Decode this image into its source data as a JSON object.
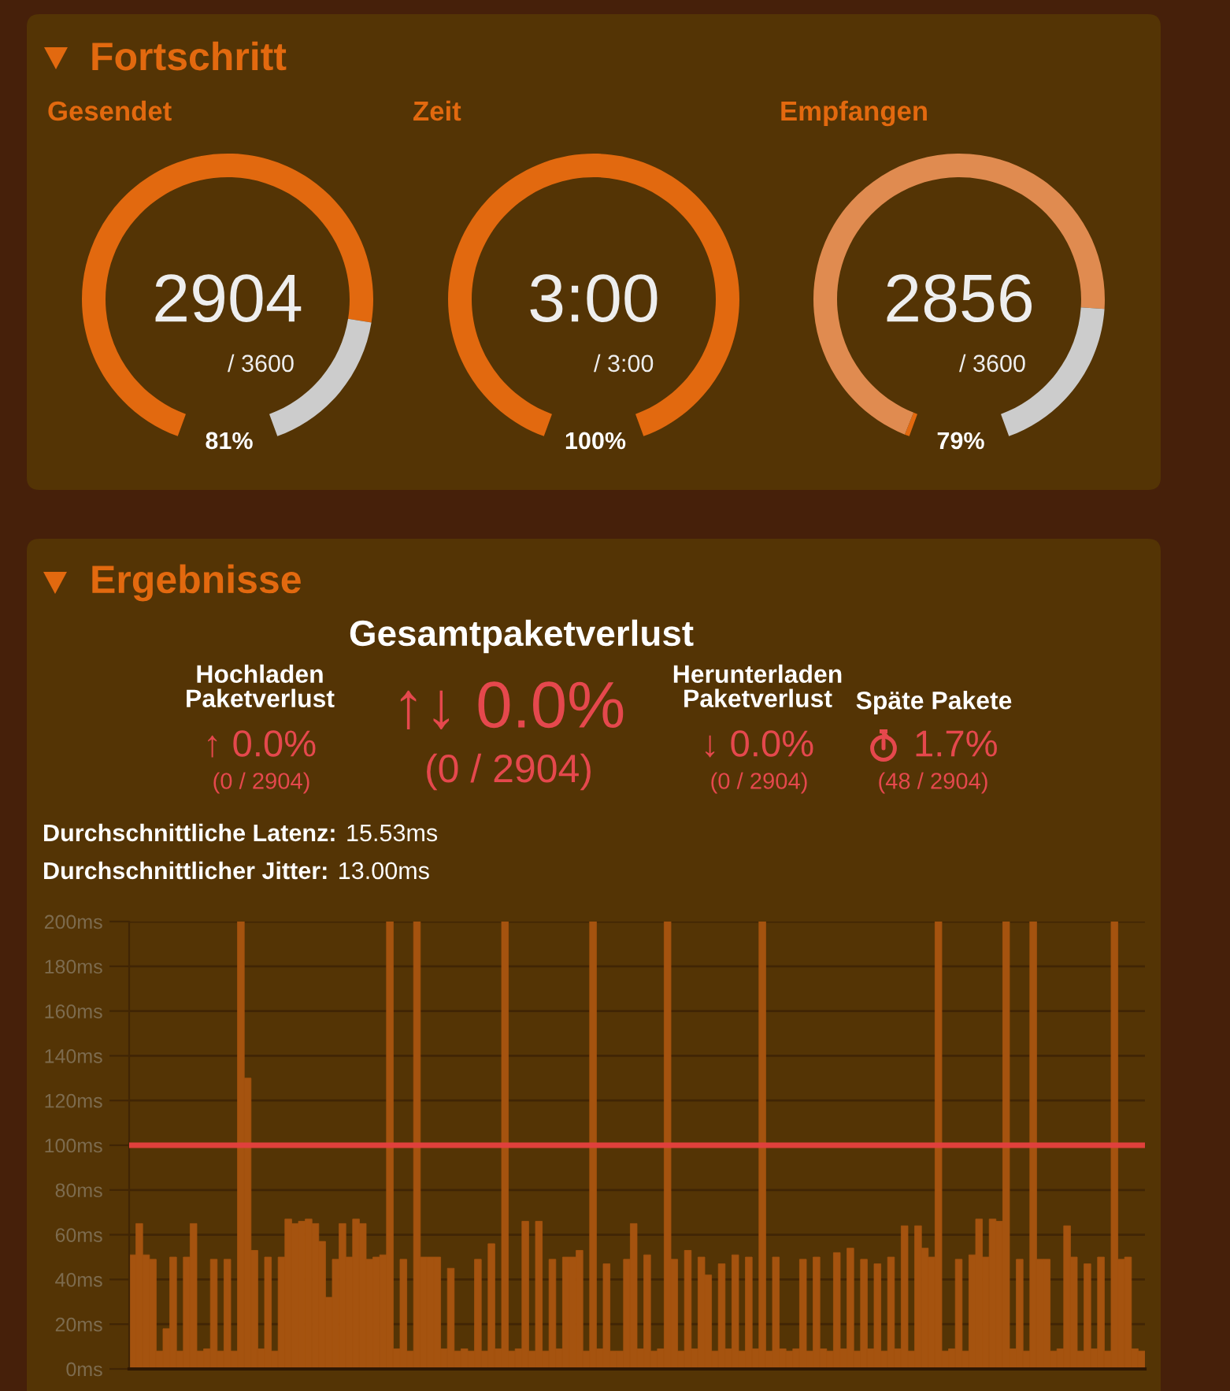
{
  "chart_data": [
    {
      "type": "other",
      "title": "Fortschritt"
    },
    {
      "type": "donut",
      "title": "Gesendet",
      "categories": [
        null,
        null
      ],
      "values": [
        81,
        19
      ],
      "colors": [
        "#e2690f",
        "#cccccc"
      ],
      "annotations": [
        "2904",
        "/ 3600",
        "81%"
      ]
    },
    {
      "type": "pie",
      "title": "Zeit",
      "categories": [
        null
      ],
      "values": [
        100
      ],
      "colors": [
        "#e2690f"
      ],
      "annotations": [
        "3:00",
        "/ 3:00",
        "100%"
      ]
    },
    {
      "type": "donut",
      "title": "Empfangen",
      "categories": [
        null,
        null,
        null
      ],
      "values": [
        0.6,
        78.7,
        20.7
      ],
      "colors": [
        "#e2690f",
        "#e08b50",
        "#cccccc"
      ],
      "annotations": [
        "2856",
        "/ 3600",
        "79%"
      ]
    },
    {
      "type": "other",
      "title": "Ergebnisse",
      "annotations": [
        "Gesamtpaketverlust",
        "↑↓ 0.0%",
        "(0 / 2904)",
        "Hochladen\nPaketverlust",
        "↑ 0.0%",
        "(0 / 2904)",
        "Herunterladen\nPaketverlust",
        "↓ 0.0%",
        "(0 / 2904)",
        "Späte Pakete",
        "1.7%",
        "(48 / 2904)",
        "Durchschnittliche Latenz:",
        "15.53ms",
        "Durchschnittlicher Jitter:",
        "13.00ms"
      ]
    },
    {
      "type": "bar",
      "categories": [
        null,
        null,
        null,
        null,
        null,
        null,
        null,
        null,
        null,
        null,
        null,
        null,
        null,
        null,
        null,
        null,
        null,
        null,
        null,
        null,
        null,
        null,
        null,
        null,
        null,
        null,
        null,
        null,
        null,
        null,
        null,
        null,
        null,
        null,
        null,
        null,
        null,
        null,
        null,
        null,
        null,
        null,
        null,
        null,
        null,
        null,
        null,
        null,
        null,
        null,
        null,
        null,
        null,
        null,
        null,
        null,
        null,
        null,
        null,
        null,
        null,
        null,
        null,
        null,
        null,
        null,
        null,
        null,
        null,
        null,
        null,
        null,
        null,
        null,
        null,
        null,
        null,
        null,
        null,
        null,
        null,
        null,
        null,
        null,
        null,
        null,
        null,
        null,
        null,
        null,
        null,
        null,
        null,
        null,
        null,
        null,
        null,
        null,
        null,
        null,
        null,
        null,
        null,
        null,
        null,
        null,
        null,
        null,
        null,
        null,
        null,
        null,
        null,
        null,
        null,
        null,
        null,
        null,
        null,
        null,
        null,
        null,
        null,
        null,
        null,
        null,
        null,
        null,
        null,
        null,
        null,
        null,
        null,
        null,
        null,
        null,
        null,
        null,
        null,
        null,
        null,
        null,
        null,
        null,
        null,
        null,
        null,
        null,
        null,
        null
      ],
      "values": [
        51,
        65,
        51,
        49,
        8,
        18,
        50,
        8,
        50,
        65,
        8,
        9,
        49,
        8,
        49,
        8,
        200,
        130,
        53,
        9,
        50,
        8,
        50,
        67,
        65,
        66,
        67,
        65,
        57,
        32,
        49,
        65,
        50,
        67,
        65,
        49,
        50,
        51,
        200,
        9,
        49,
        8,
        200,
        50,
        50,
        50,
        9,
        45,
        8,
        9,
        8,
        49,
        8,
        56,
        9,
        200,
        8,
        9,
        66,
        8,
        66,
        8,
        49,
        9,
        50,
        50,
        53,
        8,
        200,
        9,
        47,
        8,
        8,
        49,
        65,
        9,
        51,
        8,
        9,
        200,
        49,
        8,
        53,
        9,
        50,
        42,
        8,
        47,
        9,
        51,
        8,
        50,
        9,
        200,
        8,
        50,
        9,
        8,
        9,
        49,
        8,
        50,
        9,
        8,
        52,
        9,
        54,
        8,
        49,
        9,
        47,
        8,
        50,
        9,
        64,
        8,
        64,
        54,
        50,
        200,
        8,
        9,
        49,
        8,
        51,
        67,
        50,
        67,
        66,
        200,
        9,
        49,
        8,
        200,
        49,
        49,
        8,
        9,
        64,
        50,
        8,
        47,
        9,
        50,
        8,
        200,
        49,
        50,
        9,
        8
      ],
      "color": "#a5530f",
      "ylim": [
        0,
        200
      ],
      "yticks": [
        {
          "value": 0,
          "label": "0ms"
        },
        {
          "value": 20,
          "label": "20ms"
        },
        {
          "value": 40,
          "label": "40ms"
        },
        {
          "value": 60,
          "label": "60ms"
        },
        {
          "value": 80,
          "label": "80ms"
        },
        {
          "value": 100,
          "label": "100ms"
        },
        {
          "value": 120,
          "label": "120ms"
        },
        {
          "value": 140,
          "label": "140ms"
        },
        {
          "value": 160,
          "label": "160ms"
        },
        {
          "value": 180,
          "label": "180ms"
        },
        {
          "value": 200,
          "label": "200ms"
        }
      ],
      "grid": "y",
      "ref_lines": [
        {
          "axis": "y",
          "value": 100,
          "color": "#e0403c"
        }
      ]
    }
  ]
}
